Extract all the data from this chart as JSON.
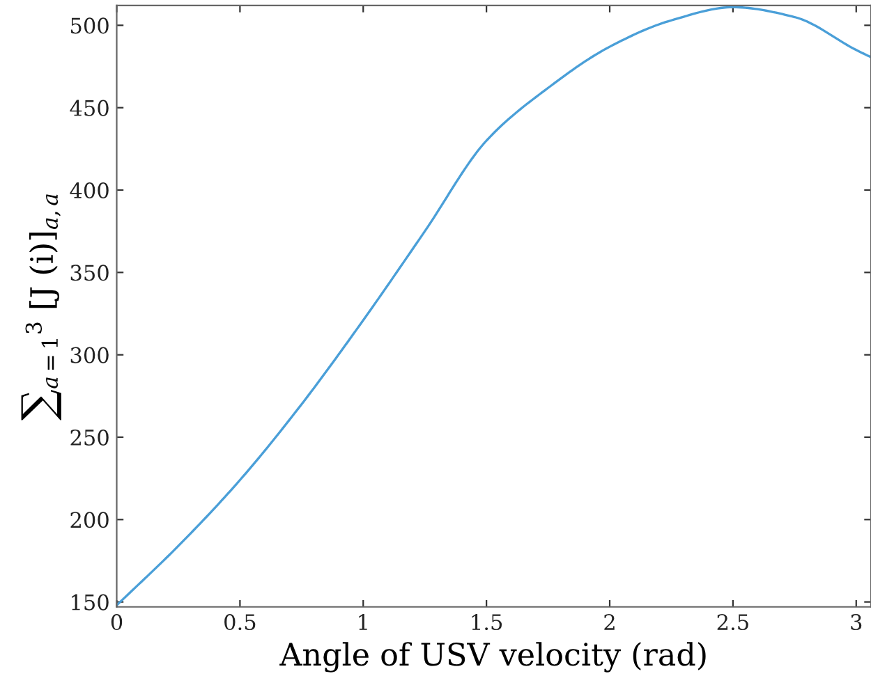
{
  "chart_data": {
    "type": "line",
    "xlabel": "Angle of USV velocity (rad)",
    "ylabel": "∑$_{a=1}$$^{3}$ [J (i)]$_{a,a}$",
    "x": [
      0,
      0.25,
      0.5,
      0.75,
      1,
      1.25,
      1.5,
      1.75,
      2,
      2.25,
      2.5,
      2.75,
      3,
      3.055
    ],
    "series": [
      {
        "color": "#4a9fd8",
        "values": [
          148,
          184,
          224,
          270,
          321,
          375,
          430,
          462,
          487,
          503,
          511,
          505,
          485,
          481
        ]
      }
    ],
    "xlim": [
      0,
      3.06
    ],
    "ylim": [
      147,
      512
    ],
    "xticks": [
      0,
      0.5,
      1,
      1.5,
      2,
      2.5,
      3
    ],
    "yticks": [
      150,
      200,
      250,
      300,
      350,
      400,
      450,
      500
    ],
    "marker": "none",
    "line_style": "solid"
  }
}
